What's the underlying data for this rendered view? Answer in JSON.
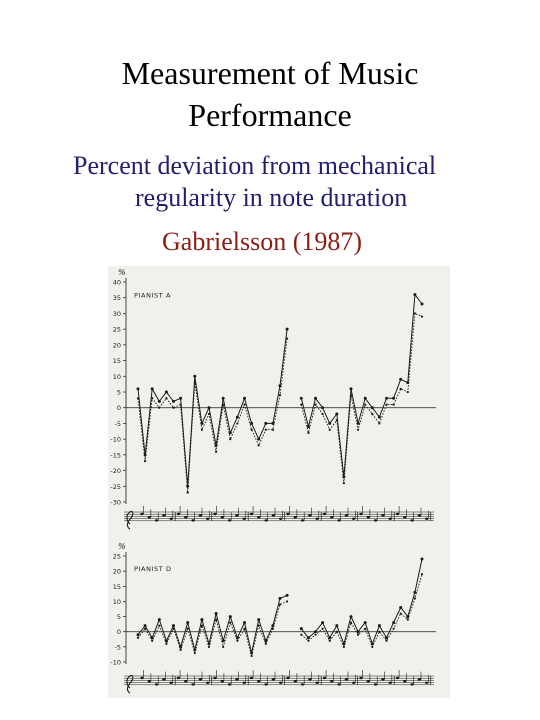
{
  "slide": {
    "title_line1": "Measurement of Music",
    "title_line2": "Performance",
    "bullet_line1": "Percent deviation from mechanical",
    "bullet_line2": "regularity in note duration",
    "credit": "Gabrielsson (1987)"
  },
  "colors": {
    "title": "#000000",
    "bullet": "#1f1f6e",
    "credit": "#8b1c14",
    "page_scan": "#f2f0ea",
    "ink": "#1a1a1a"
  },
  "chart_data": [
    {
      "type": "line",
      "title": "PIANIST A",
      "ylabel": "%",
      "ylim": [
        -30,
        40
      ],
      "yticks": [
        40,
        35,
        30,
        25,
        20,
        15,
        10,
        5,
        0,
        -5,
        -10,
        -15,
        -20,
        -25,
        -30
      ],
      "series": [
        {
          "values": [
            6,
            -15,
            6,
            2,
            5,
            2,
            3,
            -25,
            10,
            -5,
            0,
            -12,
            3,
            -8,
            -3,
            3,
            -5,
            -10,
            -5,
            -5,
            7,
            25,
            null,
            3,
            -6,
            3,
            0,
            -5,
            -2,
            -22,
            6,
            -5,
            3,
            0,
            -3,
            3,
            3,
            9,
            8,
            36,
            33
          ]
        },
        {
          "values": [
            3,
            -17,
            3,
            0,
            3,
            0,
            1,
            -27,
            8,
            -7,
            -2,
            -14,
            1,
            -10,
            -5,
            1,
            -7,
            -12,
            -7,
            -7,
            4,
            22,
            null,
            1,
            -8,
            1,
            -2,
            -7,
            -4,
            -24,
            4,
            -7,
            1,
            -2,
            -5,
            1,
            1,
            6,
            5,
            30,
            29
          ]
        }
      ]
    },
    {
      "type": "line",
      "title": "PIANIST D",
      "ylabel": "%",
      "ylim": [
        -10,
        25
      ],
      "yticks": [
        25,
        20,
        15,
        10,
        5,
        0,
        -5,
        -10
      ],
      "series": [
        {
          "values": [
            -1,
            2,
            -2,
            4,
            -3,
            2,
            -5,
            3,
            -6,
            4,
            -4,
            6,
            -3,
            5,
            -2,
            3,
            -7,
            4,
            -3,
            2,
            11,
            12,
            null,
            1,
            -2,
            0,
            3,
            -2,
            2,
            -4,
            5,
            0,
            3,
            -4,
            2,
            -2,
            3,
            8,
            5,
            13,
            24
          ]
        },
        {
          "values": [
            -2,
            1,
            -3,
            2,
            -4,
            1,
            -6,
            1,
            -7,
            2,
            -5,
            4,
            -5,
            3,
            -3,
            1,
            -8,
            2,
            -4,
            1,
            9,
            10,
            null,
            -1,
            -3,
            -1,
            1,
            -3,
            0,
            -5,
            3,
            -1,
            1,
            -5,
            0,
            -3,
            1,
            6,
            4,
            11,
            19
          ]
        }
      ]
    }
  ]
}
